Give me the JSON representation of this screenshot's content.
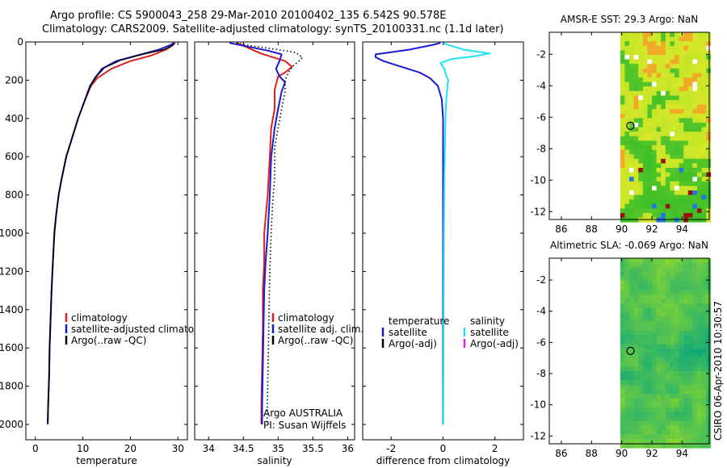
{
  "figure": {
    "title_line1": "Argo profile: CS 5900043_258 29-Mar-2010 20100402_135 6.542S 90.578E",
    "title_line2": "Climatology: CARS2009. Satellite-adjusted climatology: synTS_20100331.nc (1.1d later)",
    "side_stamp": "CSIRO 06-Apr-2010 10:30:57"
  },
  "colors": {
    "climatology": "#e02020",
    "satellite": "#1a1ad6",
    "argo": "#000000",
    "satellite_salinity_diff": "#22e0ee",
    "argo_salinity_diff": "#e020e0"
  },
  "chart_data": [
    {
      "type": "line",
      "name": "temperature-profile",
      "xlabel": "temperature",
      "ylabel": "",
      "xlim": [
        -2,
        32
      ],
      "ylim": [
        2080,
        0
      ],
      "xticks": [
        0,
        10,
        20,
        30
      ],
      "xtick_labels": [
        "0",
        "10",
        "20",
        "30"
      ],
      "yticks": [
        0,
        200,
        400,
        600,
        800,
        1000,
        1200,
        1400,
        1600,
        1800,
        2000
      ],
      "ytick_labels": [
        "0",
        "200",
        "400",
        "600",
        "800",
        "1000",
        "1200",
        "1400",
        "1600",
        "1800",
        "2000"
      ],
      "legend": [
        "climatology",
        "satellite-adjusted climatology",
        "Argo(..raw -QC)"
      ],
      "series": [
        {
          "name": "climatology",
          "color_key": "climatology",
          "points": [
            [
              29.4,
              5
            ],
            [
              29,
              15
            ],
            [
              27.5,
              40
            ],
            [
              24.5,
              70
            ],
            [
              20,
              100
            ],
            [
              16,
              140
            ],
            [
              13,
              190
            ],
            [
              11.7,
              230
            ],
            [
              10.5,
              300
            ],
            [
              9,
              400
            ],
            [
              7.5,
              520
            ],
            [
              6.5,
              600
            ],
            [
              5.5,
              720
            ],
            [
              4.9,
              800
            ],
            [
              4.4,
              900
            ],
            [
              4,
              1000
            ],
            [
              3.7,
              1150
            ],
            [
              3.4,
              1300
            ],
            [
              3.2,
              1450
            ],
            [
              3,
              1600
            ],
            [
              2.9,
              1750
            ],
            [
              2.7,
              1900
            ],
            [
              2.6,
              2000
            ]
          ]
        },
        {
          "name": "satellite-adjusted climatology",
          "color_key": "satellite",
          "points": [
            [
              29.1,
              5
            ],
            [
              28.5,
              15
            ],
            [
              26,
              40
            ],
            [
              21.5,
              70
            ],
            [
              17,
              100
            ],
            [
              14,
              140
            ],
            [
              12.5,
              190
            ],
            [
              11.5,
              230
            ],
            [
              10.5,
              300
            ],
            [
              9,
              400
            ],
            [
              7.5,
              520
            ],
            [
              6.5,
              600
            ],
            [
              5.5,
              720
            ],
            [
              4.9,
              800
            ],
            [
              4.4,
              900
            ],
            [
              4,
              1000
            ],
            [
              3.7,
              1150
            ],
            [
              3.4,
              1300
            ],
            [
              3.2,
              1450
            ],
            [
              3,
              1600
            ],
            [
              2.9,
              1750
            ],
            [
              2.7,
              1900
            ],
            [
              2.6,
              2000
            ]
          ]
        },
        {
          "name": "Argo(..raw -QC)",
          "color_key": "argo",
          "points": [
            [
              29.3,
              5
            ],
            [
              28.8,
              20
            ],
            [
              27,
              40
            ],
            [
              22.5,
              65
            ],
            [
              18,
              95
            ],
            [
              14.5,
              135
            ],
            [
              12.7,
              185
            ],
            [
              11.6,
              230
            ],
            [
              10.5,
              300
            ],
            [
              9,
              400
            ],
            [
              7.5,
              520
            ],
            [
              6.5,
              600
            ],
            [
              5.5,
              720
            ],
            [
              4.9,
              800
            ],
            [
              4.4,
              900
            ],
            [
              4,
              1000
            ],
            [
              3.7,
              1150
            ],
            [
              3.4,
              1300
            ],
            [
              3.2,
              1450
            ],
            [
              3,
              1600
            ],
            [
              2.9,
              1750
            ],
            [
              2.7,
              1900
            ],
            [
              2.6,
              1990
            ]
          ]
        }
      ]
    },
    {
      "type": "line",
      "name": "salinity-profile",
      "xlabel": "salinity",
      "xlim": [
        33.8,
        36.1
      ],
      "ylim": [
        2080,
        0
      ],
      "xticks": [
        34,
        34.5,
        35,
        35.5,
        36
      ],
      "xtick_labels": [
        "34",
        "34.5",
        "35",
        "35.5",
        "36"
      ],
      "yticks": [
        0,
        200,
        400,
        600,
        800,
        1000,
        1200,
        1400,
        1600,
        1800,
        2000
      ],
      "legend": [
        "climatology",
        "satellite adj. clim.",
        "Argo(..raw -QC)"
      ],
      "annotation_line1": "Argo AUSTRALIA",
      "annotation_line2": "PI: Susan Wijffels",
      "series": [
        {
          "name": "climatology",
          "color_key": "climatology",
          "points": [
            [
              34.4,
              5
            ],
            [
              34.5,
              20
            ],
            [
              34.75,
              60
            ],
            [
              35.1,
              100
            ],
            [
              35.2,
              130
            ],
            [
              35.1,
              160
            ],
            [
              35,
              180
            ],
            [
              34.95,
              250
            ],
            [
              34.95,
              350
            ],
            [
              34.9,
              450
            ],
            [
              34.88,
              600
            ],
            [
              34.85,
              800
            ],
            [
              34.8,
              1000
            ],
            [
              34.8,
              1150
            ],
            [
              34.78,
              1300
            ],
            [
              34.78,
              1500
            ],
            [
              34.77,
              1700
            ],
            [
              34.76,
              1900
            ],
            [
              34.76,
              2000
            ]
          ]
        },
        {
          "name": "satellite adj. clim.",
          "color_key": "satellite",
          "points": [
            [
              34.3,
              5
            ],
            [
              34.5,
              20
            ],
            [
              34.85,
              45
            ],
            [
              35.05,
              65
            ],
            [
              35.02,
              100
            ],
            [
              34.97,
              140
            ],
            [
              35.02,
              180
            ],
            [
              35.1,
              210
            ],
            [
              35.05,
              260
            ],
            [
              35,
              350
            ],
            [
              34.95,
              450
            ],
            [
              34.9,
              600
            ],
            [
              34.88,
              800
            ],
            [
              34.85,
              1000
            ],
            [
              34.82,
              1150
            ],
            [
              34.8,
              1300
            ],
            [
              34.79,
              1500
            ],
            [
              34.78,
              1700
            ],
            [
              34.77,
              1900
            ],
            [
              34.77,
              2000
            ]
          ]
        },
        {
          "name": "Argo(..raw -QC)",
          "color_key": "argo",
          "points": [
            [
              34.4,
              5
            ],
            [
              34.6,
              20
            ],
            [
              35,
              40
            ],
            [
              35.25,
              55
            ],
            [
              35.35,
              80
            ],
            [
              35.3,
              100
            ],
            [
              35.2,
              130
            ],
            [
              35.15,
              160
            ],
            [
              35.1,
              200
            ],
            [
              35.1,
              260
            ],
            [
              35.05,
              350
            ],
            [
              35,
              450
            ],
            [
              34.95,
              550
            ],
            [
              34.95,
              700
            ],
            [
              34.92,
              850
            ],
            [
              34.9,
              1000
            ],
            [
              34.88,
              1200
            ],
            [
              34.87,
              1400
            ],
            [
              34.86,
              1600
            ],
            [
              34.85,
              1800
            ],
            [
              34.84,
              2000
            ]
          ]
        }
      ]
    },
    {
      "type": "line",
      "name": "difference-profile",
      "xlabel": "difference from climatology",
      "xlim": [
        -3.1,
        3.1
      ],
      "ylim": [
        2080,
        0
      ],
      "xticks": [
        -2,
        0,
        2
      ],
      "xtick_labels": [
        "-2",
        "0",
        "2"
      ],
      "yticks": [
        0,
        200,
        400,
        600,
        800,
        1000,
        1200,
        1400,
        1600,
        1800,
        2000
      ],
      "legend_temperature_heading": "temperature",
      "legend_salinity_heading": "salinity",
      "legend_temperature": [
        "satellite",
        "Argo(-adj)"
      ],
      "legend_salinity": [
        "satellite",
        "Argo(-adj)"
      ],
      "series": [
        {
          "name": "temperature satellite",
          "color_key": "satellite",
          "points": [
            [
              -0.1,
              5
            ],
            [
              -0.4,
              15
            ],
            [
              -1.3,
              40
            ],
            [
              -2.6,
              65
            ],
            [
              -2.6,
              80
            ],
            [
              -2.3,
              100
            ],
            [
              -1.6,
              130
            ],
            [
              -0.9,
              160
            ],
            [
              -0.5,
              190
            ],
            [
              -0.2,
              230
            ],
            [
              -0.05,
              300
            ],
            [
              0,
              400
            ],
            [
              0,
              600
            ],
            [
              0,
              1000
            ],
            [
              0,
              1500
            ],
            [
              0,
              2000
            ]
          ]
        },
        {
          "name": "salinity satellite",
          "color_key": "satellite_salinity_diff",
          "points": [
            [
              0,
              5
            ],
            [
              0.2,
              15
            ],
            [
              0.8,
              40
            ],
            [
              1.8,
              60
            ],
            [
              1.2,
              75
            ],
            [
              0.3,
              90
            ],
            [
              -0.1,
              110
            ],
            [
              0.05,
              140
            ],
            [
              0.1,
              170
            ],
            [
              0.2,
              200
            ],
            [
              0.15,
              260
            ],
            [
              0.1,
              350
            ],
            [
              0.08,
              500
            ],
            [
              0.05,
              700
            ],
            [
              0.03,
              1000
            ],
            [
              0.02,
              1500
            ],
            [
              0.01,
              2000
            ]
          ]
        }
      ]
    },
    {
      "type": "heatmap",
      "name": "amsr-sst-map",
      "title": "AMSR-E SST: 29.3 Argo: NaN",
      "xlim": [
        85.2,
        95.8
      ],
      "ylim": [
        -12.5,
        -0.6
      ],
      "xticks": [
        86,
        88,
        90,
        92,
        94
      ],
      "xtick_labels": [
        "86",
        "88",
        "90",
        "92",
        "94"
      ],
      "yticks": [
        -2,
        -4,
        -6,
        -8,
        -10,
        -12
      ],
      "ytick_labels": [
        "-2",
        "-4",
        "-6",
        "-8",
        "-10",
        "-12"
      ],
      "data_lon_min": 89.9,
      "marker": {
        "lon": 90.578,
        "lat": -6.542
      }
    },
    {
      "type": "heatmap",
      "name": "altimetric-sla-map",
      "title": "Altimetric SLA: -0.069 Argo: NaN",
      "xlim": [
        85.2,
        95.8
      ],
      "ylim": [
        -12.5,
        -0.6
      ],
      "xticks": [
        86,
        88,
        90,
        92,
        94
      ],
      "xtick_labels": [
        "86",
        "88",
        "90",
        "92",
        "94"
      ],
      "yticks": [
        -2,
        -4,
        -6,
        -8,
        -10,
        -12
      ],
      "ytick_labels": [
        "-2",
        "-4",
        "-6",
        "-8",
        "-10",
        "-12"
      ],
      "data_lon_min": 89.9,
      "marker": {
        "lon": 90.578,
        "lat": -6.542
      }
    }
  ]
}
